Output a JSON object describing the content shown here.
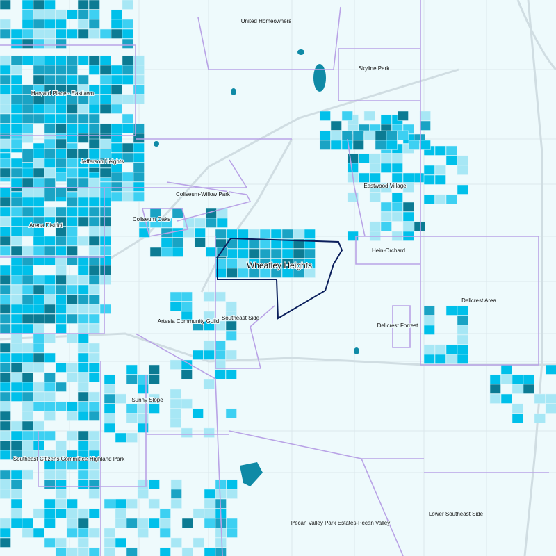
{
  "map": {
    "labels": [
      "United Homeowners",
      "Skyline Park",
      "Harvard Place - Eastlawn",
      "Jefferson Heights",
      "Eastwood Village",
      "Coliseum-Willow Park",
      "Coliseum Oaks",
      "Arena District",
      "Hein-Orchard",
      "Wheatley Heights",
      "Dellcrest Area",
      "Southeast Side",
      "Artesia Community Guild",
      "Dellcrest Forrest",
      "Sunny Slope",
      "Southeast Citizens Committee-Highland Park",
      "Pecan Valley Park Estates-Pecan Valley",
      "Lower Southeast Side"
    ]
  }
}
